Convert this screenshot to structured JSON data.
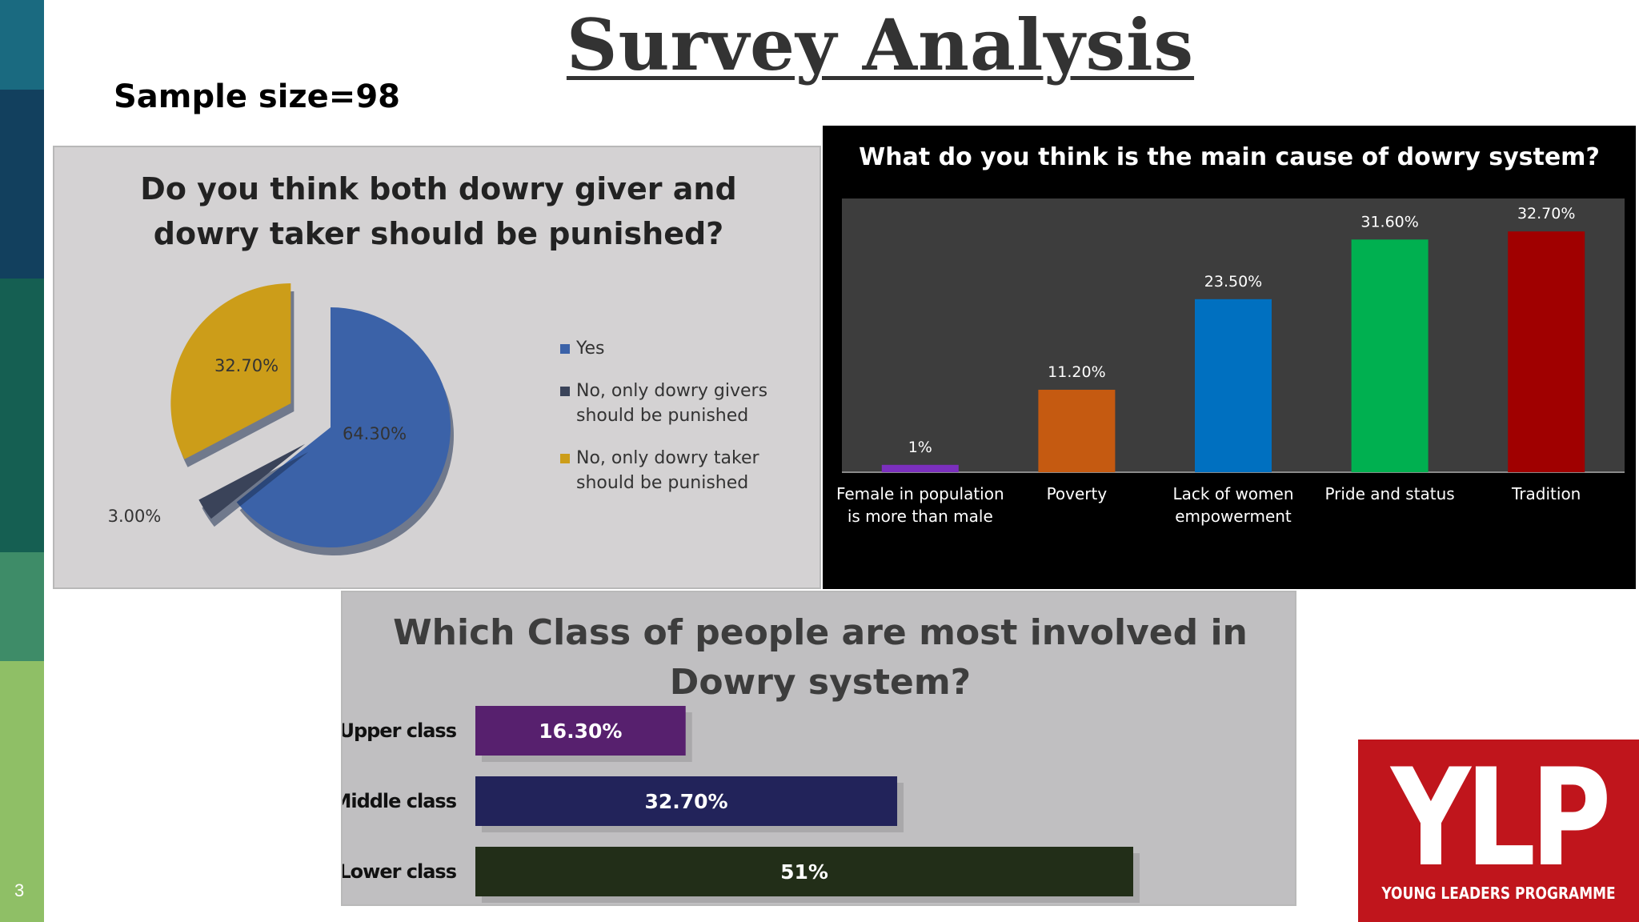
{
  "slide": {
    "title": "Survey Analysis",
    "subtitle": "Sample size=98",
    "number": "3"
  },
  "colors": {
    "sidebar": [
      "#1a6a80",
      "#12405e",
      "#155f52",
      "#3e8c68",
      "#8fbf66"
    ]
  },
  "logo": {
    "text": "YLP",
    "subtext": "YOUNG LEADERS PROGRAMME"
  },
  "chart_data": [
    {
      "type": "pie",
      "title": "Do you think both dowry giver and dowry taker should be punished?",
      "slices": [
        {
          "label": "Yes",
          "value": 64.3,
          "display": "64.30%",
          "color": "#3b62a8"
        },
        {
          "label": "No, only dowry givers should be punished",
          "value": 3.0,
          "display": "3.00%",
          "color": "#3a4359"
        },
        {
          "label": "No, only dowry taker should be punished",
          "value": 32.7,
          "display": "32.70%",
          "color": "#cc9d19"
        }
      ],
      "legend_position": "right"
    },
    {
      "type": "bar",
      "title": "What do you think is the main cause of dowry system?",
      "categories": [
        "Female in population is more than male",
        "Poverty",
        "Lack of women empowerment",
        "Pride and status",
        "Tradition"
      ],
      "category_lines": [
        [
          "Female in population",
          "is more than male"
        ],
        [
          "Poverty"
        ],
        [
          "Lack of women",
          "empowerment"
        ],
        [
          "Pride and status"
        ],
        [
          "Tradition"
        ]
      ],
      "values": [
        1,
        11.2,
        23.5,
        31.6,
        32.7
      ],
      "labels": [
        "1%",
        "11.20%",
        "23.50%",
        "31.60%",
        "32.70%"
      ],
      "colors": [
        "#7b2fbe",
        "#c55a11",
        "#0070c0",
        "#00b050",
        "#a00000"
      ],
      "ylim": [
        0,
        35
      ]
    },
    {
      "type": "bar",
      "orientation": "horizontal",
      "title": "Which Class of people are most involved in Dowry system?",
      "categories": [
        "Upper class",
        "Middle class",
        "Lower class"
      ],
      "values": [
        16.3,
        32.7,
        51
      ],
      "labels": [
        "16.30%",
        "32.70%",
        "51%"
      ],
      "colors": [
        "#57206e",
        "#22235a",
        "#222e18"
      ],
      "xlim": [
        0,
        51
      ]
    }
  ]
}
